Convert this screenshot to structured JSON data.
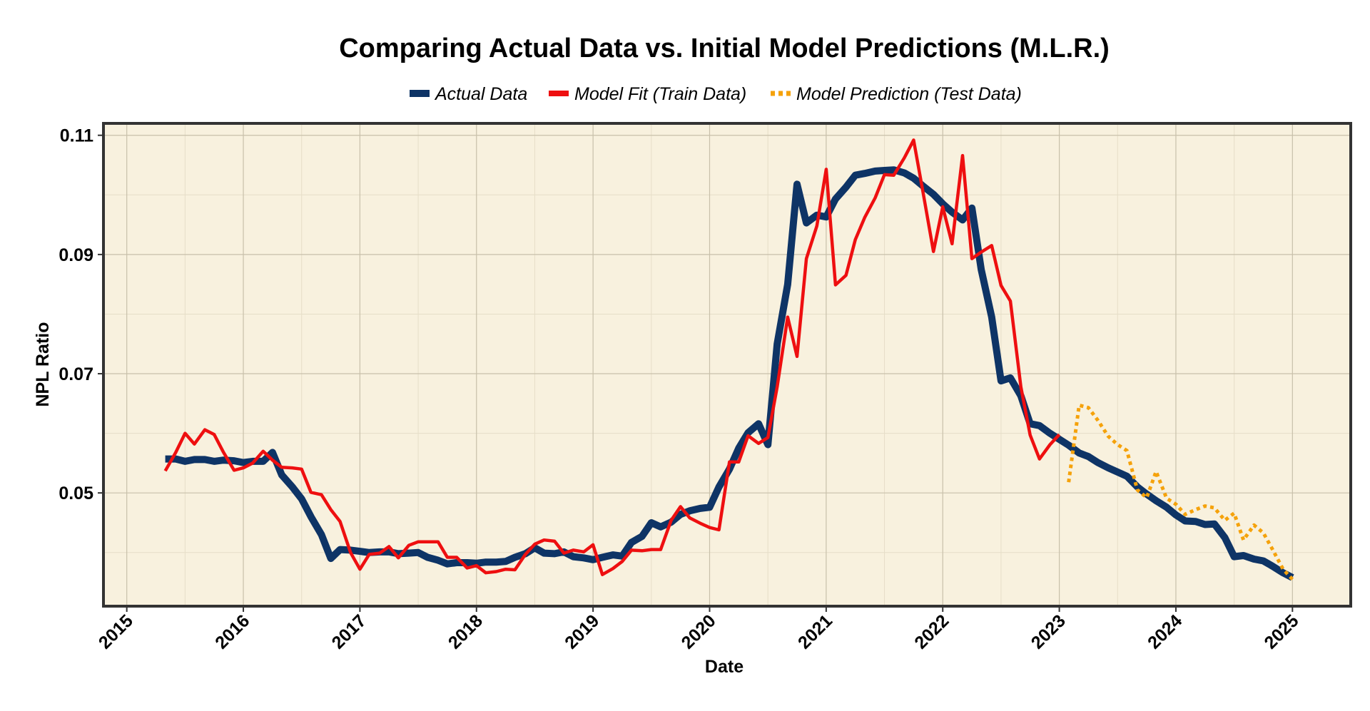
{
  "colors": {
    "actual": "#0e3466",
    "fit": "#ee0f10",
    "prediction": "#f5a20b",
    "panel_bg": "#f8f1de",
    "grid_major": "#c8c0aa",
    "grid_minor": "#e6dec8",
    "border": "#333333"
  },
  "chart_data": {
    "type": "line",
    "title": "Comparing Actual Data vs. Initial Model Predictions (M.L.R.)",
    "xlabel": "Date",
    "ylabel": "NPL Ratio",
    "xlim": [
      2014.8,
      2025.5
    ],
    "ylim": [
      0.031,
      0.112
    ],
    "x_ticks": [
      2015,
      2016,
      2017,
      2018,
      2019,
      2020,
      2021,
      2022,
      2023,
      2024,
      2025
    ],
    "x_tick_labels": [
      "2015",
      "2016",
      "2017",
      "2018",
      "2019",
      "2020",
      "2021",
      "2022",
      "2023",
      "2024",
      "2025"
    ],
    "y_ticks": [
      0.05,
      0.07,
      0.09,
      0.11
    ],
    "y_tick_labels": [
      "0.05",
      "0.07",
      "0.09",
      "0.11"
    ],
    "grid": true,
    "legend_position": "top-center",
    "series": [
      {
        "name": "Actual Data",
        "style": "solid-thick",
        "x": [
          2015.33,
          2015.42,
          2015.5,
          2015.58,
          2015.67,
          2015.75,
          2015.83,
          2015.92,
          2016.0,
          2016.08,
          2016.17,
          2016.25,
          2016.33,
          2016.42,
          2016.5,
          2016.58,
          2016.67,
          2016.75,
          2016.83,
          2016.92,
          2017.0,
          2017.08,
          2017.17,
          2017.25,
          2017.33,
          2017.42,
          2017.5,
          2017.58,
          2017.67,
          2017.75,
          2017.83,
          2017.92,
          2018.0,
          2018.08,
          2018.17,
          2018.25,
          2018.33,
          2018.42,
          2018.5,
          2018.58,
          2018.67,
          2018.75,
          2018.83,
          2018.92,
          2019.0,
          2019.08,
          2019.17,
          2019.25,
          2019.33,
          2019.42,
          2019.5,
          2019.58,
          2019.67,
          2019.75,
          2019.83,
          2019.92,
          2020.0,
          2020.08,
          2020.17,
          2020.25,
          2020.33,
          2020.42,
          2020.5,
          2020.58,
          2020.67,
          2020.75,
          2020.83,
          2020.92,
          2021.0,
          2021.08,
          2021.17,
          2021.25,
          2021.33,
          2021.42,
          2021.5,
          2021.58,
          2021.67,
          2021.75,
          2021.83,
          2021.92,
          2022.0,
          2022.08,
          2022.17,
          2022.25,
          2022.33,
          2022.42,
          2022.5,
          2022.58,
          2022.67,
          2022.75,
          2022.83,
          2022.92,
          2023.0,
          2023.08,
          2023.17,
          2023.25,
          2023.33,
          2023.42,
          2023.5,
          2023.58,
          2023.67,
          2023.75,
          2023.83,
          2023.92,
          2024.0,
          2024.08,
          2024.17,
          2024.25,
          2024.33,
          2024.42,
          2024.5,
          2024.58,
          2024.67,
          2024.75,
          2024.83,
          2024.92,
          2025.0
        ],
        "values": [
          0.0557,
          0.0557,
          0.0553,
          0.0556,
          0.0556,
          0.0553,
          0.0555,
          0.0554,
          0.0551,
          0.0553,
          0.0553,
          0.0568,
          0.053,
          0.051,
          0.049,
          0.046,
          0.043,
          0.039,
          0.0405,
          0.0404,
          0.0402,
          0.04,
          0.0401,
          0.0401,
          0.0398,
          0.0399,
          0.04,
          0.0392,
          0.0387,
          0.0381,
          0.0383,
          0.0383,
          0.0382,
          0.0384,
          0.0384,
          0.0385,
          0.0392,
          0.0398,
          0.0408,
          0.0399,
          0.0398,
          0.0401,
          0.0393,
          0.0391,
          0.0388,
          0.0392,
          0.0396,
          0.0394,
          0.0417,
          0.0427,
          0.045,
          0.0443,
          0.0451,
          0.0464,
          0.047,
          0.0474,
          0.0476,
          0.051,
          0.054,
          0.0575,
          0.0601,
          0.0616,
          0.0581,
          0.075,
          0.085,
          0.1018,
          0.0953,
          0.0966,
          0.0963,
          0.0993,
          0.1013,
          0.1033,
          0.1036,
          0.104,
          0.1041,
          0.1042,
          0.1037,
          0.1028,
          0.1015,
          0.1001,
          0.0985,
          0.0971,
          0.0958,
          0.0978,
          0.0875,
          0.0795,
          0.0688,
          0.0693,
          0.0663,
          0.0616,
          0.0613,
          0.06,
          0.059,
          0.058,
          0.0567,
          0.0561,
          0.0551,
          0.0542,
          0.0535,
          0.0528,
          0.051,
          0.0498,
          0.0487,
          0.0476,
          0.0463,
          0.0453,
          0.0452,
          0.0447,
          0.0448,
          0.0425,
          0.0393,
          0.0395,
          0.0389,
          0.0386,
          0.0377,
          0.0366,
          0.0358
        ]
      },
      {
        "name": "Model Fit (Train Data)",
        "style": "solid",
        "x": [
          2015.33,
          2015.42,
          2015.5,
          2015.58,
          2015.67,
          2015.75,
          2015.83,
          2015.92,
          2016.0,
          2016.08,
          2016.17,
          2016.25,
          2016.33,
          2016.42,
          2016.5,
          2016.58,
          2016.67,
          2016.75,
          2016.83,
          2016.92,
          2017.0,
          2017.08,
          2017.17,
          2017.25,
          2017.33,
          2017.42,
          2017.5,
          2017.58,
          2017.67,
          2017.75,
          2017.83,
          2017.92,
          2018.0,
          2018.08,
          2018.17,
          2018.25,
          2018.33,
          2018.42,
          2018.5,
          2018.58,
          2018.67,
          2018.75,
          2018.83,
          2018.92,
          2019.0,
          2019.08,
          2019.17,
          2019.25,
          2019.33,
          2019.42,
          2019.5,
          2019.58,
          2019.67,
          2019.75,
          2019.83,
          2019.92,
          2020.0,
          2020.08,
          2020.17,
          2020.25,
          2020.33,
          2020.42,
          2020.5,
          2020.58,
          2020.67,
          2020.75,
          2020.83,
          2020.92,
          2021.0,
          2021.08,
          2021.17,
          2021.25,
          2021.33,
          2021.42,
          2021.5,
          2021.58,
          2021.67,
          2021.75,
          2021.83,
          2021.92,
          2022.0,
          2022.08,
          2022.17,
          2022.25,
          2022.33,
          2022.42,
          2022.5,
          2022.58,
          2022.67,
          2022.75,
          2022.83,
          2022.92,
          2023.0
        ],
        "values": [
          0.0537,
          0.0568,
          0.06,
          0.0582,
          0.0606,
          0.0598,
          0.0568,
          0.0538,
          0.0542,
          0.055,
          0.057,
          0.0555,
          0.0543,
          0.0542,
          0.054,
          0.0501,
          0.0497,
          0.0472,
          0.0452,
          0.04,
          0.0372,
          0.0397,
          0.0399,
          0.041,
          0.0391,
          0.0412,
          0.0418,
          0.0418,
          0.0418,
          0.0392,
          0.0392,
          0.0374,
          0.0378,
          0.0366,
          0.0368,
          0.0372,
          0.0371,
          0.0397,
          0.0414,
          0.0421,
          0.0419,
          0.0399,
          0.0404,
          0.0401,
          0.0413,
          0.0363,
          0.0373,
          0.0385,
          0.0404,
          0.0403,
          0.0405,
          0.0405,
          0.0454,
          0.0477,
          0.0458,
          0.0449,
          0.0442,
          0.0438,
          0.0552,
          0.0552,
          0.0596,
          0.0583,
          0.0593,
          0.0678,
          0.0795,
          0.0729,
          0.0893,
          0.0948,
          0.1043,
          0.0849,
          0.0865,
          0.0925,
          0.0962,
          0.0995,
          0.1034,
          0.1033,
          0.1062,
          0.1092,
          0.1005,
          0.0905,
          0.098,
          0.0918,
          0.1066,
          0.0893,
          0.0904,
          0.0915,
          0.0848,
          0.0822,
          0.0678,
          0.0597,
          0.0557,
          0.0581,
          0.0598
        ]
      },
      {
        "name": "Model Prediction (Test Data)",
        "style": "dotted",
        "x": [
          2023.08,
          2023.17,
          2023.25,
          2023.33,
          2023.42,
          2023.5,
          2023.58,
          2023.67,
          2023.75,
          2023.83,
          2023.92,
          2024.0,
          2024.08,
          2024.17,
          2024.25,
          2024.33,
          2024.42,
          2024.5,
          2024.58,
          2024.67,
          2024.75,
          2024.83,
          2024.92,
          2025.0
        ],
        "values": [
          0.0518,
          0.0647,
          0.0643,
          0.0622,
          0.0595,
          0.0581,
          0.0571,
          0.0505,
          0.0492,
          0.0536,
          0.0491,
          0.0481,
          0.0464,
          0.0472,
          0.0478,
          0.0475,
          0.0454,
          0.0466,
          0.0421,
          0.0446,
          0.0433,
          0.0405,
          0.0372,
          0.0355
        ]
      }
    ]
  }
}
